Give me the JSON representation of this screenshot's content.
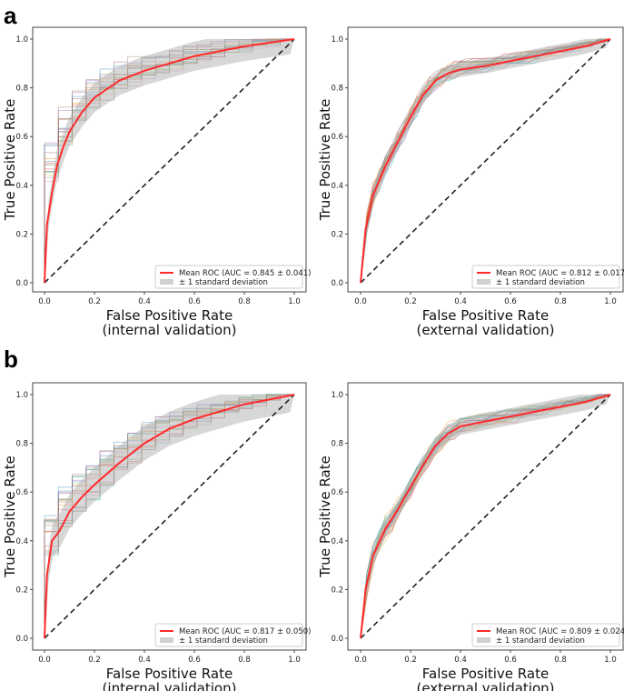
{
  "panel_labels": [
    "a",
    "b"
  ],
  "chart_data": [
    {
      "type": "line",
      "panel": "a",
      "position": "left",
      "xlabel": "False Positive Rate",
      "xlabel2": "(internal validation)",
      "ylabel": "True Positive Rate",
      "xlim": [
        0,
        1
      ],
      "ylim": [
        0,
        1
      ],
      "xticks": [
        "0.0",
        "0.2",
        "0.4",
        "0.6",
        "0.8",
        "1.0"
      ],
      "yticks": [
        "0.0",
        "0.2",
        "0.4",
        "0.6",
        "0.8",
        "1.0"
      ],
      "legend": {
        "placement": "lower-right",
        "mean_label": "Mean ROC (AUC = 0.845 ± 0.041)",
        "std_label": "± 1 standard deviation"
      },
      "mean_auc": 0.845,
      "std_auc": 0.041,
      "std_band": 0.06,
      "mean_roc": {
        "x": [
          0,
          0.01,
          0.03,
          0.05,
          0.076,
          0.1,
          0.15,
          0.2,
          0.3,
          0.4,
          0.5,
          0.6,
          0.7,
          0.8,
          0.9,
          1
        ],
        "y": [
          0,
          0.24,
          0.37,
          0.48,
          0.56,
          0.62,
          0.7,
          0.76,
          0.83,
          0.87,
          0.9,
          0.93,
          0.95,
          0.97,
          0.985,
          1
        ]
      },
      "colors": {
        "mean": "#ff2a2a",
        "band": "#b0b0b0",
        "chance": "#222222"
      }
    },
    {
      "type": "line",
      "panel": "a",
      "position": "right",
      "xlabel": "False Positive Rate",
      "xlabel2": "(external validation)",
      "ylabel": "True Positive Rate",
      "xlim": [
        0,
        1
      ],
      "ylim": [
        0,
        1
      ],
      "xticks": [
        "0.0",
        "0.2",
        "0.4",
        "0.6",
        "0.8",
        "1.0"
      ],
      "yticks": [
        "0.0",
        "0.2",
        "0.4",
        "0.6",
        "0.8",
        "1.0"
      ],
      "legend": {
        "placement": "lower-right",
        "mean_label": "Mean ROC (AUC = 0.812 ± 0.017)",
        "std_label": "± 1 standard deviation"
      },
      "mean_auc": 0.812,
      "std_auc": 0.017,
      "std_band": 0.03,
      "mean_roc": {
        "x": [
          0,
          0.02,
          0.05,
          0.1,
          0.15,
          0.2,
          0.25,
          0.3,
          0.35,
          0.4,
          0.5,
          0.6,
          0.7,
          0.8,
          0.9,
          1
        ],
        "y": [
          0,
          0.22,
          0.36,
          0.48,
          0.58,
          0.68,
          0.77,
          0.83,
          0.86,
          0.875,
          0.89,
          0.91,
          0.93,
          0.95,
          0.97,
          1
        ]
      },
      "colors": {
        "mean": "#ff2a2a",
        "band": "#b0b0b0",
        "chance": "#222222"
      }
    },
    {
      "type": "line",
      "panel": "b",
      "position": "left",
      "xlabel": "False Positive Rate",
      "xlabel2": "(internal validation)",
      "ylabel": "True Positive Rate",
      "xlim": [
        0,
        1
      ],
      "ylim": [
        0,
        1
      ],
      "xticks": [
        "0.0",
        "0.2",
        "0.4",
        "0.6",
        "0.8",
        "1.0"
      ],
      "yticks": [
        "0.0",
        "0.2",
        "0.4",
        "0.6",
        "0.8",
        "1.0"
      ],
      "legend": {
        "placement": "lower-right",
        "mean_label": "Mean ROC (AUC = 0.817 ± 0.050)",
        "std_label": "± 1 standard deviation"
      },
      "mean_auc": 0.817,
      "std_auc": 0.05,
      "std_band": 0.07,
      "mean_roc": {
        "x": [
          0,
          0.01,
          0.03,
          0.06,
          0.1,
          0.15,
          0.2,
          0.3,
          0.4,
          0.5,
          0.6,
          0.7,
          0.8,
          0.9,
          1
        ],
        "y": [
          0,
          0.26,
          0.4,
          0.44,
          0.52,
          0.58,
          0.63,
          0.72,
          0.8,
          0.86,
          0.9,
          0.93,
          0.96,
          0.98,
          1
        ]
      },
      "colors": {
        "mean": "#ff2a2a",
        "band": "#b0b0b0",
        "chance": "#222222"
      }
    },
    {
      "type": "line",
      "panel": "b",
      "position": "right",
      "xlabel": "False Positive Rate",
      "xlabel2": "(external validation)",
      "ylabel": "True Positive Rate",
      "xlim": [
        0,
        1
      ],
      "ylim": [
        0,
        1
      ],
      "xticks": [
        "0.0",
        "0.2",
        "0.4",
        "0.6",
        "0.8",
        "1.0"
      ],
      "yticks": [
        "0.0",
        "0.2",
        "0.4",
        "0.6",
        "0.8",
        "1.0"
      ],
      "legend": {
        "placement": "lower-right",
        "mean_label": "Mean ROC (AUC = 0.809 ± 0.024)",
        "std_label": "± 1 standard deviation"
      },
      "mean_auc": 0.809,
      "std_auc": 0.024,
      "std_band": 0.035,
      "mean_roc": {
        "x": [
          0,
          0.02,
          0.05,
          0.1,
          0.15,
          0.2,
          0.25,
          0.3,
          0.35,
          0.4,
          0.5,
          0.6,
          0.7,
          0.8,
          0.9,
          1
        ],
        "y": [
          0,
          0.2,
          0.34,
          0.45,
          0.53,
          0.62,
          0.71,
          0.79,
          0.84,
          0.87,
          0.89,
          0.91,
          0.93,
          0.95,
          0.97,
          1
        ]
      },
      "colors": {
        "mean": "#ff2a2a",
        "band": "#b0b0b0",
        "chance": "#222222"
      }
    }
  ]
}
